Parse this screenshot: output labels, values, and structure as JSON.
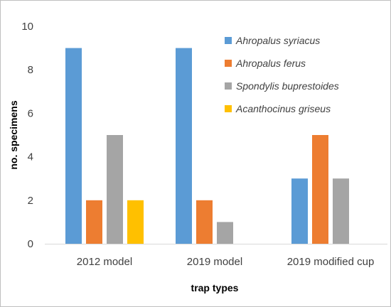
{
  "chart_data": {
    "type": "bar",
    "categories": [
      "2012 model",
      "2019 model",
      "2019 modified cup"
    ],
    "series": [
      {
        "name": "Ahropalus syriacus",
        "color": "#5B9BD5",
        "values": [
          9,
          9,
          3
        ]
      },
      {
        "name": "Ahropalus ferus",
        "color": "#ED7D31",
        "values": [
          2,
          2,
          5
        ]
      },
      {
        "name": "Spondylis buprestoides",
        "color": "#A5A5A5",
        "values": [
          5,
          1,
          3
        ]
      },
      {
        "name": "Acanthocinus griseus",
        "color": "#FFC000",
        "values": [
          2,
          0,
          0
        ]
      }
    ],
    "xlabel": "trap types",
    "ylabel": "no. specimens",
    "ylim": [
      0,
      10
    ],
    "yticks": [
      0,
      2,
      4,
      6,
      8,
      10
    ],
    "grid": false,
    "legend_position": "top-right"
  }
}
